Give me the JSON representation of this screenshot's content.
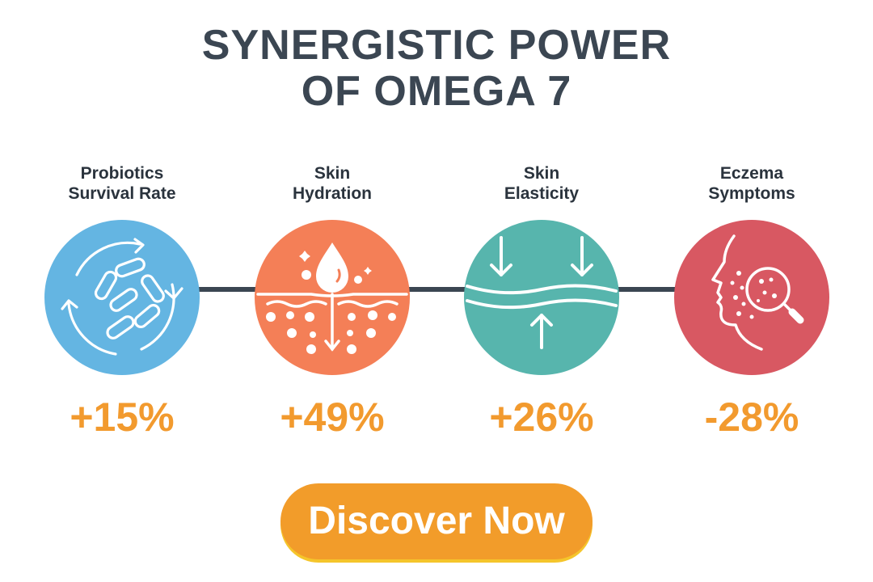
{
  "title": {
    "line1": "SYNERGISTIC POWER",
    "line2": "OF OMEGA 7"
  },
  "stats": [
    {
      "label_line1": "Probiotics",
      "label_line2": "Survival Rate",
      "value": "+15%",
      "icon": "probiotics-cycle-icon",
      "color": "#64b5e2"
    },
    {
      "label_line1": "Skin",
      "label_line2": "Hydration",
      "value": "+49%",
      "icon": "water-drop-skin-icon",
      "color": "#f47f57"
    },
    {
      "label_line1": "Skin",
      "label_line2": "Elasticity",
      "value": "+26%",
      "icon": "elastic-skin-arrows-icon",
      "color": "#57b5ad"
    },
    {
      "label_line1": "Eczema",
      "label_line2": "Symptoms",
      "value": "-28%",
      "icon": "face-magnifier-icon",
      "color": "#d85862"
    }
  ],
  "colors": {
    "title": "#3b4652",
    "value": "#f29a2e",
    "connector": "#3b4652",
    "button": "#f29c2a",
    "button_shadow": "#f5c52b"
  },
  "cta": {
    "label": "Discover Now"
  }
}
